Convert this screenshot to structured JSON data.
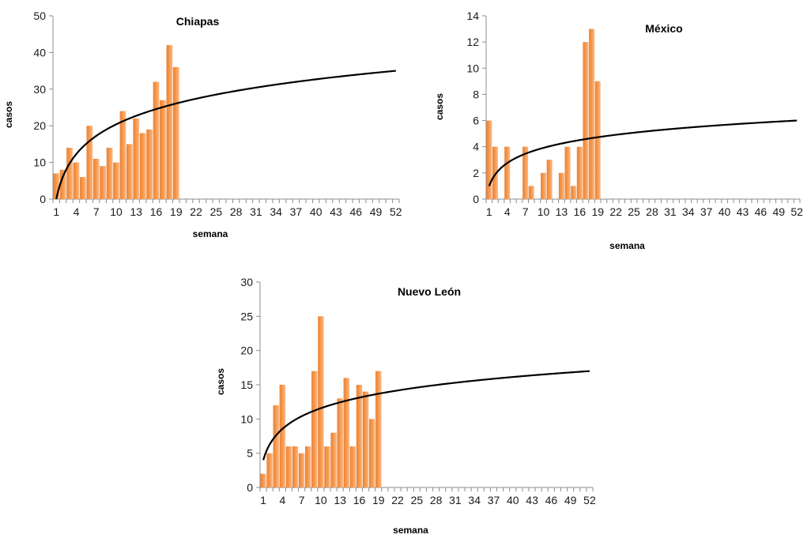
{
  "chart_data": [
    {
      "type": "bar",
      "title": "Chiapas",
      "xlabel": "semana",
      "ylabel": "casos",
      "ylim": [
        0,
        50
      ],
      "yticks": [
        0,
        10,
        20,
        30,
        40,
        50
      ],
      "xlim": [
        1,
        52
      ],
      "xticks": [
        1,
        4,
        7,
        10,
        13,
        16,
        19,
        22,
        25,
        28,
        31,
        34,
        37,
        40,
        43,
        46,
        49,
        52
      ],
      "bar_color": "#F79646",
      "trend_color": "#000000",
      "trendline": "logarithmic",
      "x": [
        1,
        2,
        3,
        4,
        5,
        6,
        7,
        8,
        9,
        10,
        11,
        12,
        13,
        14,
        15,
        16,
        17,
        18,
        19
      ],
      "values": [
        7,
        8,
        14,
        10,
        6,
        20,
        11,
        9,
        14,
        10,
        24,
        15,
        22,
        18,
        19,
        32,
        27,
        42,
        36
      ],
      "trend": {
        "at_x1": 0,
        "at_x52": 35
      }
    },
    {
      "type": "bar",
      "title": "México",
      "xlabel": "semana",
      "ylabel": "casos",
      "ylim": [
        0,
        14
      ],
      "yticks": [
        0,
        2,
        4,
        6,
        8,
        10,
        12,
        14
      ],
      "xlim": [
        1,
        52
      ],
      "xticks": [
        1,
        4,
        7,
        10,
        13,
        16,
        19,
        22,
        25,
        28,
        31,
        34,
        37,
        40,
        43,
        46,
        49,
        52
      ],
      "bar_color": "#F79646",
      "trend_color": "#000000",
      "trendline": "logarithmic",
      "x": [
        1,
        2,
        3,
        4,
        5,
        6,
        7,
        8,
        9,
        10,
        11,
        12,
        13,
        14,
        15,
        16,
        17,
        18,
        19
      ],
      "values": [
        6,
        4,
        0,
        4,
        0,
        0,
        4,
        1,
        0,
        2,
        3,
        0,
        2,
        4,
        1,
        4,
        12,
        13,
        9
      ],
      "trend": {
        "at_x1": 1,
        "at_x52": 6
      }
    },
    {
      "type": "bar",
      "title": "Nuevo León",
      "xlabel": "semana",
      "ylabel": "casos",
      "ylim": [
        0,
        30
      ],
      "yticks": [
        0,
        5,
        10,
        15,
        20,
        25,
        30
      ],
      "xlim": [
        1,
        52
      ],
      "xticks": [
        1,
        4,
        7,
        10,
        13,
        16,
        19,
        22,
        25,
        28,
        31,
        34,
        37,
        40,
        43,
        46,
        49,
        52
      ],
      "bar_color": "#F79646",
      "trend_color": "#000000",
      "trendline": "logarithmic",
      "x": [
        1,
        2,
        3,
        4,
        5,
        6,
        7,
        8,
        9,
        10,
        11,
        12,
        13,
        14,
        15,
        16,
        17,
        18,
        19
      ],
      "values": [
        2,
        5,
        12,
        15,
        6,
        6,
        5,
        6,
        17,
        25,
        6,
        8,
        13,
        16,
        6,
        15,
        14,
        10,
        17
      ],
      "trend": {
        "at_x1": 4,
        "at_x52": 17
      }
    }
  ]
}
